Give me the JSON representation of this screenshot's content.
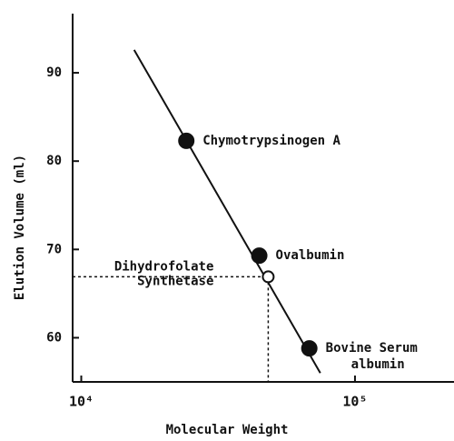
{
  "chart_data": {
    "type": "scatter",
    "xlabel": "Molecular Weight",
    "ylabel": "Elution Volume (ml)",
    "xscale": "log",
    "xlim": [
      9300,
      230000
    ],
    "ylim": [
      55,
      96.7
    ],
    "xticks": [
      {
        "value": 10000,
        "label": "10⁴"
      },
      {
        "value": 100000,
        "label": "10⁵"
      }
    ],
    "yticks": [
      60,
      70,
      80,
      90
    ],
    "color": "#111111",
    "points": [
      {
        "label": [
          "Chymotrypsinogen A"
        ],
        "x": 24200,
        "y": 82.3,
        "filled": true
      },
      {
        "label": [
          "Ovalbumin"
        ],
        "x": 44700,
        "y": 69.3,
        "filled": true
      },
      {
        "label": [
          "Bovine Serum",
          "albumin"
        ],
        "x": 68100,
        "y": 58.8,
        "filled": true
      },
      {
        "label": [
          "Dihydrofolate",
          "Synthetase"
        ],
        "x": 48200,
        "y": 66.9,
        "filled": false
      }
    ],
    "fit_line": {
      "x": [
        15600,
        74700
      ],
      "y": [
        92.6,
        56.0
      ]
    }
  }
}
